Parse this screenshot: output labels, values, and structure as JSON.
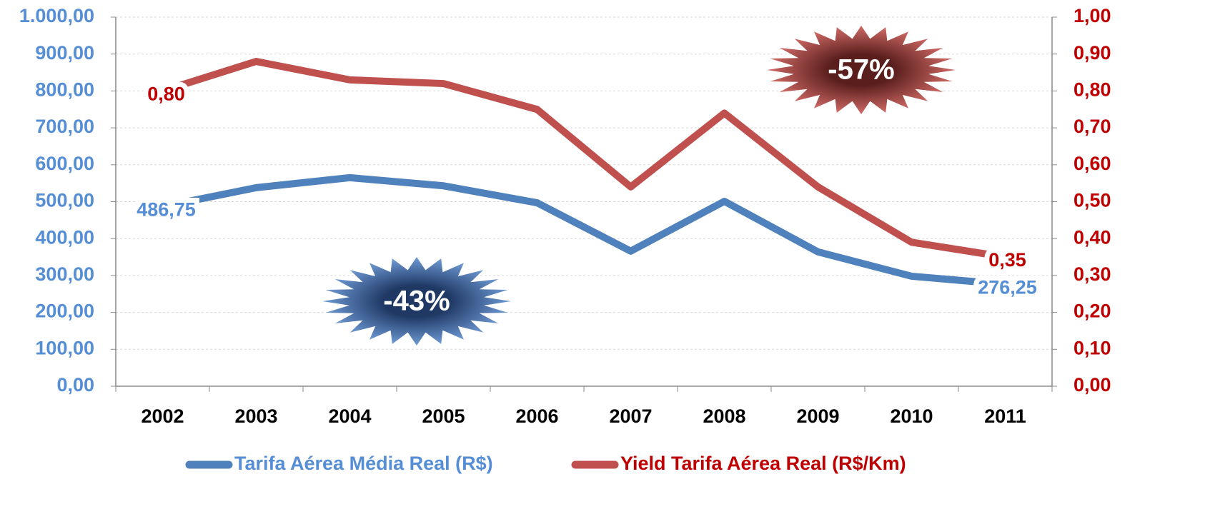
{
  "chart_data": {
    "type": "line",
    "categories": [
      "2002",
      "2003",
      "2004",
      "2005",
      "2006",
      "2007",
      "2008",
      "2009",
      "2010",
      "2011"
    ],
    "series": [
      {
        "name": "Tarifa Aérea Média Real (R$)",
        "color": "#4f81bd",
        "values": [
          486.75,
          538,
          565,
          543,
          497,
          366,
          501,
          364,
          298,
          276.25
        ],
        "value_labels": [
          "486,75",
          null,
          null,
          null,
          null,
          null,
          null,
          null,
          null,
          "276,25"
        ]
      },
      {
        "name": "Yield Tarifa Aérea Real (R$/Km)",
        "color": "#c0504d",
        "axis": "y2",
        "values": [
          0.8,
          0.88,
          0.83,
          0.82,
          0.75,
          0.54,
          0.74,
          0.54,
          0.39,
          0.35
        ],
        "value_labels": [
          "0,80",
          null,
          null,
          null,
          null,
          null,
          null,
          null,
          null,
          "0,35"
        ]
      }
    ],
    "ylim": [
      0,
      1000
    ],
    "yticks": [
      {
        "value": 0,
        "label": "0,00"
      },
      {
        "value": 100,
        "label": "100,00"
      },
      {
        "value": 200,
        "label": "200,00"
      },
      {
        "value": 300,
        "label": "300,00"
      },
      {
        "value": 400,
        "label": "400,00"
      },
      {
        "value": 500,
        "label": "500,00"
      },
      {
        "value": 600,
        "label": "600,00"
      },
      {
        "value": 700,
        "label": "700,00"
      },
      {
        "value": 800,
        "label": "800,00"
      },
      {
        "value": 900,
        "label": "900,00"
      },
      {
        "value": 1000,
        "label": "1.000,00"
      }
    ],
    "y2lim": [
      0,
      1
    ],
    "y2ticks": [
      {
        "value": 0,
        "label": "0,00"
      },
      {
        "value": 0.1,
        "label": "0,10"
      },
      {
        "value": 0.2,
        "label": "0,20"
      },
      {
        "value": 0.3,
        "label": "0,30"
      },
      {
        "value": 0.4,
        "label": "0,40"
      },
      {
        "value": 0.5,
        "label": "0,50"
      },
      {
        "value": 0.6,
        "label": "0,60"
      },
      {
        "value": 0.7,
        "label": "0,70"
      },
      {
        "value": 0.8,
        "label": "0,80"
      },
      {
        "value": 0.9,
        "label": "0,90"
      },
      {
        "value": 1,
        "label": "1,00"
      }
    ],
    "grid": true,
    "legend": "bottom",
    "annotations": [
      "-43%",
      "-57%"
    ]
  }
}
